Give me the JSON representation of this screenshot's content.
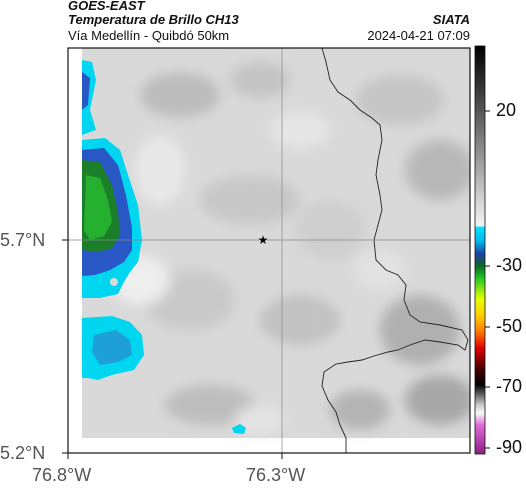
{
  "header": {
    "agency_line": "GOES-EAST",
    "product": "Temperatura de Brillo CH13",
    "location": "Vía Medellín - Quibdó 50km",
    "source": "SIATA",
    "datetime": "2024-04-21 07:09"
  },
  "axes": {
    "lat_labels": [
      "5.7°N",
      "5.2°N"
    ],
    "lon_labels": [
      "76.8°W",
      "76.3°W"
    ]
  },
  "colorbar": {
    "labels": [
      "20",
      "-30",
      "-50",
      "-70",
      "-90"
    ]
  },
  "colors": {
    "cloud_cold_blue": "#2a57c6",
    "cloud_cyan": "#00d6f0",
    "cloud_green": "#26a832",
    "background_gray": "#d8d8d8",
    "border_line": "#222222"
  },
  "marker": {
    "symbol": "★"
  }
}
